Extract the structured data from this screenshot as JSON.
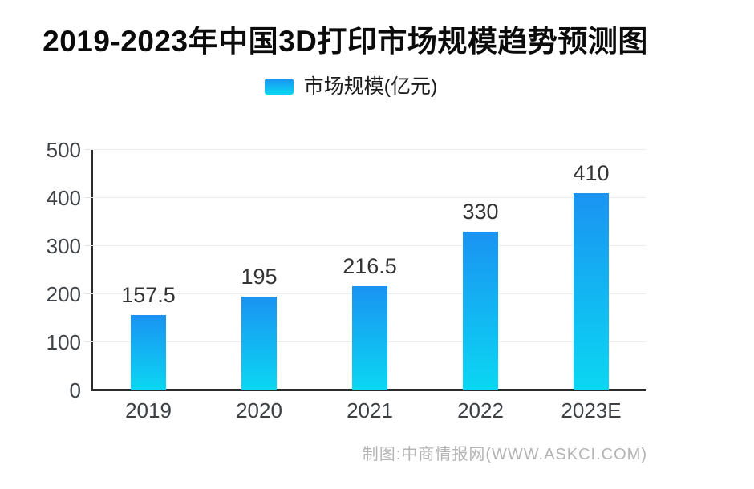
{
  "header": {
    "title": "2019-2023年中国3D打印市场规模趋势预测图"
  },
  "chart_data": {
    "type": "bar",
    "title": "2019-2023年中国3D打印市场规模趋势预测图",
    "legend": "市场规模(亿元)",
    "legend_position": "top",
    "categories": [
      "2019",
      "2020",
      "2021",
      "2022",
      "2023E"
    ],
    "values": [
      157.5,
      195,
      216.5,
      330,
      410
    ],
    "value_labels": [
      "157.5",
      "195",
      "216.5",
      "330",
      "410"
    ],
    "xlabel": "",
    "ylabel": "",
    "ylim": [
      0,
      500
    ],
    "yticks": [
      0,
      100,
      200,
      300,
      400,
      500
    ],
    "grid": true,
    "bar_gradient_top": "#1a93f2",
    "bar_gradient_bottom": "#0bd7f2"
  },
  "colors": {
    "axis": "#2b2b2b",
    "gridline": "#ececec",
    "title": "#0b0b0b",
    "tick_label": "#3f4246",
    "value_label": "#333333",
    "footer": "#b4b4b4"
  },
  "footer": {
    "credit": "制图:中商情报网(WWW.ASKCI.COM)"
  }
}
